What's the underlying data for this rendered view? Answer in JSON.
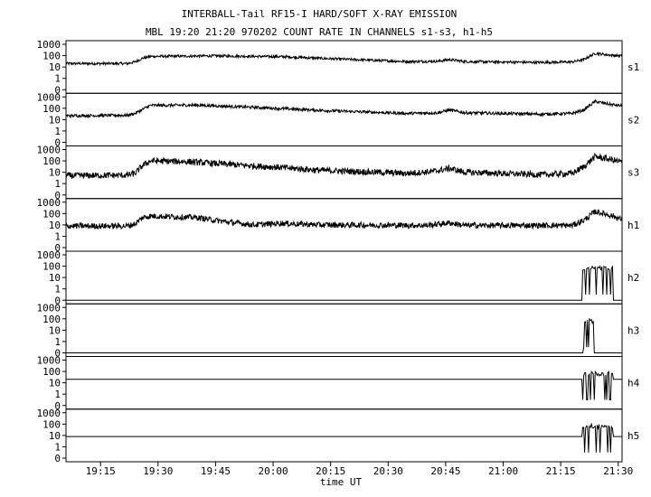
{
  "title_line1": "INTERBALL-Tail RF15-I HARD/SOFT X-RAY EMISSION",
  "title_line2": "MBL 19:20 21:20 970202  COUNT RATE IN CHANNELS s1-s3, h1-h5",
  "chart_data": {
    "type": "line",
    "xlabel": "time UT",
    "x_ticks": [
      "19:15",
      "19:30",
      "19:45",
      "20:00",
      "20:15",
      "20:30",
      "20:45",
      "21:00",
      "21:15",
      "21:30"
    ],
    "x_tick_minutes": [
      1155,
      1170,
      1185,
      1200,
      1215,
      1230,
      1245,
      1260,
      1275,
      1290
    ],
    "xlim_minutes": [
      1146,
      1291
    ],
    "y_scale": "log",
    "y_tick_labels": [
      "1000",
      "100",
      "10",
      "1",
      "0"
    ],
    "y_tick_values": [
      1000,
      100,
      10,
      1,
      0
    ],
    "panels": [
      {
        "name": "s1",
        "profile": [
          [
            1146,
            20
          ],
          [
            1162,
            20
          ],
          [
            1164,
            28
          ],
          [
            1166,
            60
          ],
          [
            1168,
            85
          ],
          [
            1185,
            95
          ],
          [
            1203,
            80
          ],
          [
            1214,
            55
          ],
          [
            1235,
            30
          ],
          [
            1243,
            32
          ],
          [
            1246,
            45
          ],
          [
            1250,
            30
          ],
          [
            1270,
            25
          ],
          [
            1278,
            28
          ],
          [
            1281,
            45
          ],
          [
            1284,
            160
          ],
          [
            1288,
            110
          ],
          [
            1291,
            95
          ]
        ],
        "noise_factor": 1.3
      },
      {
        "name": "s2",
        "profile": [
          [
            1146,
            22
          ],
          [
            1162,
            24
          ],
          [
            1164,
            35
          ],
          [
            1166,
            80
          ],
          [
            1168,
            180
          ],
          [
            1180,
            190
          ],
          [
            1195,
            120
          ],
          [
            1215,
            60
          ],
          [
            1235,
            35
          ],
          [
            1243,
            40
          ],
          [
            1246,
            70
          ],
          [
            1250,
            40
          ],
          [
            1270,
            30
          ],
          [
            1278,
            35
          ],
          [
            1281,
            70
          ],
          [
            1284,
            400
          ],
          [
            1288,
            220
          ],
          [
            1291,
            160
          ]
        ],
        "noise_factor": 1.35
      },
      {
        "name": "s3",
        "profile": [
          [
            1146,
            5
          ],
          [
            1162,
            5.5
          ],
          [
            1164,
            8
          ],
          [
            1166,
            40
          ],
          [
            1168,
            100
          ],
          [
            1178,
            85
          ],
          [
            1190,
            45
          ],
          [
            1203,
            25
          ],
          [
            1212,
            15
          ],
          [
            1235,
            8
          ],
          [
            1242,
            12
          ],
          [
            1246,
            22
          ],
          [
            1250,
            10
          ],
          [
            1270,
            6
          ],
          [
            1278,
            8
          ],
          [
            1281,
            30
          ],
          [
            1284,
            250
          ],
          [
            1288,
            130
          ],
          [
            1291,
            80
          ]
        ],
        "noise_factor": 1.9
      },
      {
        "name": "h1",
        "profile": [
          [
            1146,
            8
          ],
          [
            1162,
            8
          ],
          [
            1164,
            12
          ],
          [
            1166,
            45
          ],
          [
            1168,
            60
          ],
          [
            1172,
            55
          ],
          [
            1180,
            45
          ],
          [
            1187,
            20
          ],
          [
            1195,
            10
          ],
          [
            1202,
            14
          ],
          [
            1212,
            10
          ],
          [
            1240,
            9
          ],
          [
            1246,
            15
          ],
          [
            1250,
            9
          ],
          [
            1278,
            9
          ],
          [
            1281,
            25
          ],
          [
            1284,
            150
          ],
          [
            1288,
            70
          ],
          [
            1291,
            30
          ]
        ],
        "noise_factor": 1.8
      },
      {
        "name": "h2",
        "profile": [
          [
            1146,
            0
          ],
          [
            1280.5,
            0
          ],
          [
            1280.6,
            100
          ],
          [
            1288.5,
            100
          ],
          [
            1288.6,
            0
          ],
          [
            1291,
            0
          ]
        ],
        "burst": [
          1280.6,
          1288.5
        ],
        "noise_factor": 1
      },
      {
        "name": "h3",
        "profile": [
          [
            1146,
            0
          ],
          [
            1280.8,
            0
          ],
          [
            1280.9,
            60
          ],
          [
            1283.5,
            60
          ],
          [
            1283.6,
            0
          ],
          [
            1291,
            0
          ]
        ],
        "burst": [
          1280.9,
          1283.5
        ],
        "noise_factor": 1
      },
      {
        "name": "h4",
        "profile": [
          [
            1146,
            20
          ],
          [
            1280.5,
            20
          ],
          [
            1280.6,
            60
          ],
          [
            1288.5,
            60
          ],
          [
            1288.6,
            20
          ],
          [
            1291,
            20
          ]
        ],
        "burst": [
          1280.6,
          1288.5
        ],
        "noise_factor": 1
      },
      {
        "name": "h5",
        "profile": [
          [
            1146,
            8
          ],
          [
            1280.5,
            8
          ],
          [
            1280.6,
            60
          ],
          [
            1288.5,
            60
          ],
          [
            1288.6,
            8
          ],
          [
            1291,
            8
          ]
        ],
        "burst": [
          1280.6,
          1288.5
        ],
        "noise_factor": 1
      }
    ]
  }
}
